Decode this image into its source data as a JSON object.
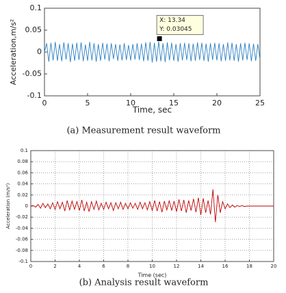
{
  "chart_data": [
    {
      "type": "line",
      "x_label": "Time, sec",
      "y_label": "Acceleration,m/s²",
      "caption": "(a) Measurement result waveform",
      "xlim": [
        0,
        25
      ],
      "ylim": [
        -0.1,
        0.1
      ],
      "xticks": [
        0,
        5,
        10,
        15,
        20,
        25
      ],
      "yticks": [
        -0.1,
        -0.05,
        0,
        0.05,
        0.1
      ],
      "grid": false,
      "x": [
        0,
        0.25,
        0.5,
        0.75,
        1,
        1.25,
        1.5,
        1.75,
        2,
        2.25,
        2.5,
        2.75,
        3,
        3.25,
        3.5,
        3.75,
        4,
        4.25,
        4.5,
        4.75,
        5,
        5.25,
        5.5,
        5.75,
        6,
        6.25,
        6.5,
        6.75,
        7,
        7.25,
        7.5,
        7.75,
        8,
        8.25,
        8.5,
        8.75,
        9,
        9.25,
        9.5,
        9.75,
        10,
        10.25,
        10.5,
        10.75,
        11,
        11.25,
        11.5,
        11.75,
        12,
        12.25,
        12.5,
        12.75,
        13,
        13.25,
        13.5,
        13.75,
        14,
        14.25,
        14.5,
        14.75,
        15,
        15.25,
        15.5,
        15.75,
        16,
        16.25,
        16.5,
        16.75,
        17,
        17.25,
        17.5,
        17.75,
        18,
        18.25,
        18.5,
        18.75,
        19,
        19.25,
        19.5,
        19.75,
        20,
        20.25,
        20.5,
        20.75,
        21,
        21.25,
        21.5,
        21.75,
        22,
        22.25,
        22.5,
        22.75,
        23,
        23.25,
        23.5,
        23.75,
        24,
        24.25,
        24.5,
        24.75,
        25
      ],
      "series": [
        {
          "color": "#2b7fc2",
          "values": [
            0,
            0.02,
            -0.022,
            0.021,
            -0.019,
            0.023,
            -0.02,
            0.018,
            -0.021,
            0.022,
            -0.017,
            0.02,
            -0.023,
            0.019,
            -0.02,
            0.021,
            -0.018,
            0.022,
            -0.021,
            0.017,
            -0.02,
            0.023,
            -0.019,
            0.02,
            -0.022,
            0.018,
            -0.02,
            0.021,
            -0.017,
            0.019,
            -0.021,
            0.02,
            -0.016,
            0.018,
            -0.02,
            0.017,
            -0.019,
            0.02,
            -0.018,
            0.016,
            -0.019,
            0.018,
            -0.017,
            0.02,
            -0.018,
            0.019,
            -0.021,
            0.022,
            -0.02,
            0.023,
            -0.024,
            0.021,
            -0.022,
            0.024,
            -0.021,
            0.02,
            -0.023,
            0.022,
            -0.019,
            0.021,
            -0.02,
            0.018,
            -0.022,
            0.02,
            -0.019,
            0.021,
            -0.018,
            0.02,
            -0.021,
            0.019,
            -0.02,
            0.022,
            -0.018,
            0.021,
            -0.02,
            0.019,
            -0.022,
            0.02,
            -0.018,
            0.021,
            -0.019,
            0.02,
            -0.021,
            0.018,
            -0.02,
            0.022,
            -0.019,
            0.021,
            -0.02,
            0.018,
            -0.022,
            0.02,
            -0.019,
            0.021,
            -0.018,
            0.02,
            -0.021,
            0.019,
            -0.02,
            0.018,
            -0.017
          ]
        }
      ],
      "annotation": {
        "x": 13.34,
        "y": 0.03045,
        "labels": [
          "X: 13.34",
          "Y: 0.03045"
        ]
      }
    },
    {
      "type": "line",
      "x_label": "Time (sec)",
      "y_label": "Acceleration (m/s²)",
      "caption": "(b) Analysis result waveform",
      "xlim": [
        0,
        20
      ],
      "ylim": [
        -0.1,
        0.1
      ],
      "xticks": [
        0,
        2,
        4,
        6,
        8,
        10,
        12,
        14,
        16,
        18,
        20
      ],
      "yticks": [
        -0.1,
        -0.08,
        -0.06,
        -0.04,
        -0.02,
        0,
        0.02,
        0.04,
        0.06,
        0.08,
        0.1
      ],
      "grid": true,
      "x": [
        0,
        0.2,
        0.4,
        0.6,
        0.8,
        1,
        1.2,
        1.4,
        1.6,
        1.8,
        2,
        2.2,
        2.4,
        2.6,
        2.8,
        3,
        3.2,
        3.4,
        3.6,
        3.8,
        4,
        4.2,
        4.4,
        4.6,
        4.8,
        5,
        5.2,
        5.4,
        5.6,
        5.8,
        6,
        6.2,
        6.4,
        6.6,
        6.8,
        7,
        7.2,
        7.4,
        7.6,
        7.8,
        8,
        8.2,
        8.4,
        8.6,
        8.8,
        9,
        9.2,
        9.4,
        9.6,
        9.8,
        10,
        10.2,
        10.4,
        10.6,
        10.8,
        11,
        11.2,
        11.4,
        11.6,
        11.8,
        12,
        12.2,
        12.4,
        12.6,
        12.8,
        13,
        13.2,
        13.4,
        13.6,
        13.8,
        14,
        14.2,
        14.4,
        14.6,
        14.8,
        15,
        15.2,
        15.4,
        15.6,
        15.8,
        16,
        16.2,
        16.4,
        16.6,
        16.8,
        17,
        17.2,
        17.4,
        17.6,
        17.8,
        18,
        18.2,
        18.4,
        18.6,
        18.8,
        19,
        19.2,
        19.4,
        19.6,
        19.8,
        20
      ],
      "series": [
        {
          "color": "#c00000",
          "values": [
            0,
            0.001,
            -0.002,
            0.003,
            -0.004,
            0.005,
            -0.003,
            0.004,
            -0.005,
            0.006,
            -0.006,
            0.008,
            -0.005,
            0.007,
            -0.009,
            0.01,
            -0.007,
            0.009,
            -0.006,
            0.008,
            -0.008,
            0.011,
            -0.009,
            0.007,
            -0.01,
            0.008,
            -0.006,
            0.009,
            -0.007,
            0.005,
            -0.006,
            0.007,
            -0.005,
            0.006,
            -0.008,
            0.006,
            -0.005,
            0.007,
            -0.006,
            0.005,
            -0.005,
            0.006,
            -0.004,
            0.005,
            -0.006,
            0.007,
            -0.005,
            0.006,
            -0.007,
            0.008,
            -0.008,
            0.01,
            -0.009,
            0.008,
            -0.011,
            0.009,
            -0.007,
            0.01,
            -0.008,
            0.009,
            -0.01,
            0.012,
            -0.009,
            0.011,
            -0.012,
            0.01,
            -0.008,
            0.013,
            -0.011,
            0.015,
            -0.016,
            0.014,
            -0.012,
            0.01,
            -0.015,
            0.03,
            -0.029,
            0.02,
            -0.012,
            0.008,
            -0.005,
            0.004,
            -0.003,
            0.002,
            -0.002,
            0.001,
            -0.001,
            0.001,
            -0.001,
            0,
            0,
            0,
            0,
            0,
            0,
            0,
            0,
            0,
            0,
            0,
            0
          ]
        }
      ]
    }
  ]
}
